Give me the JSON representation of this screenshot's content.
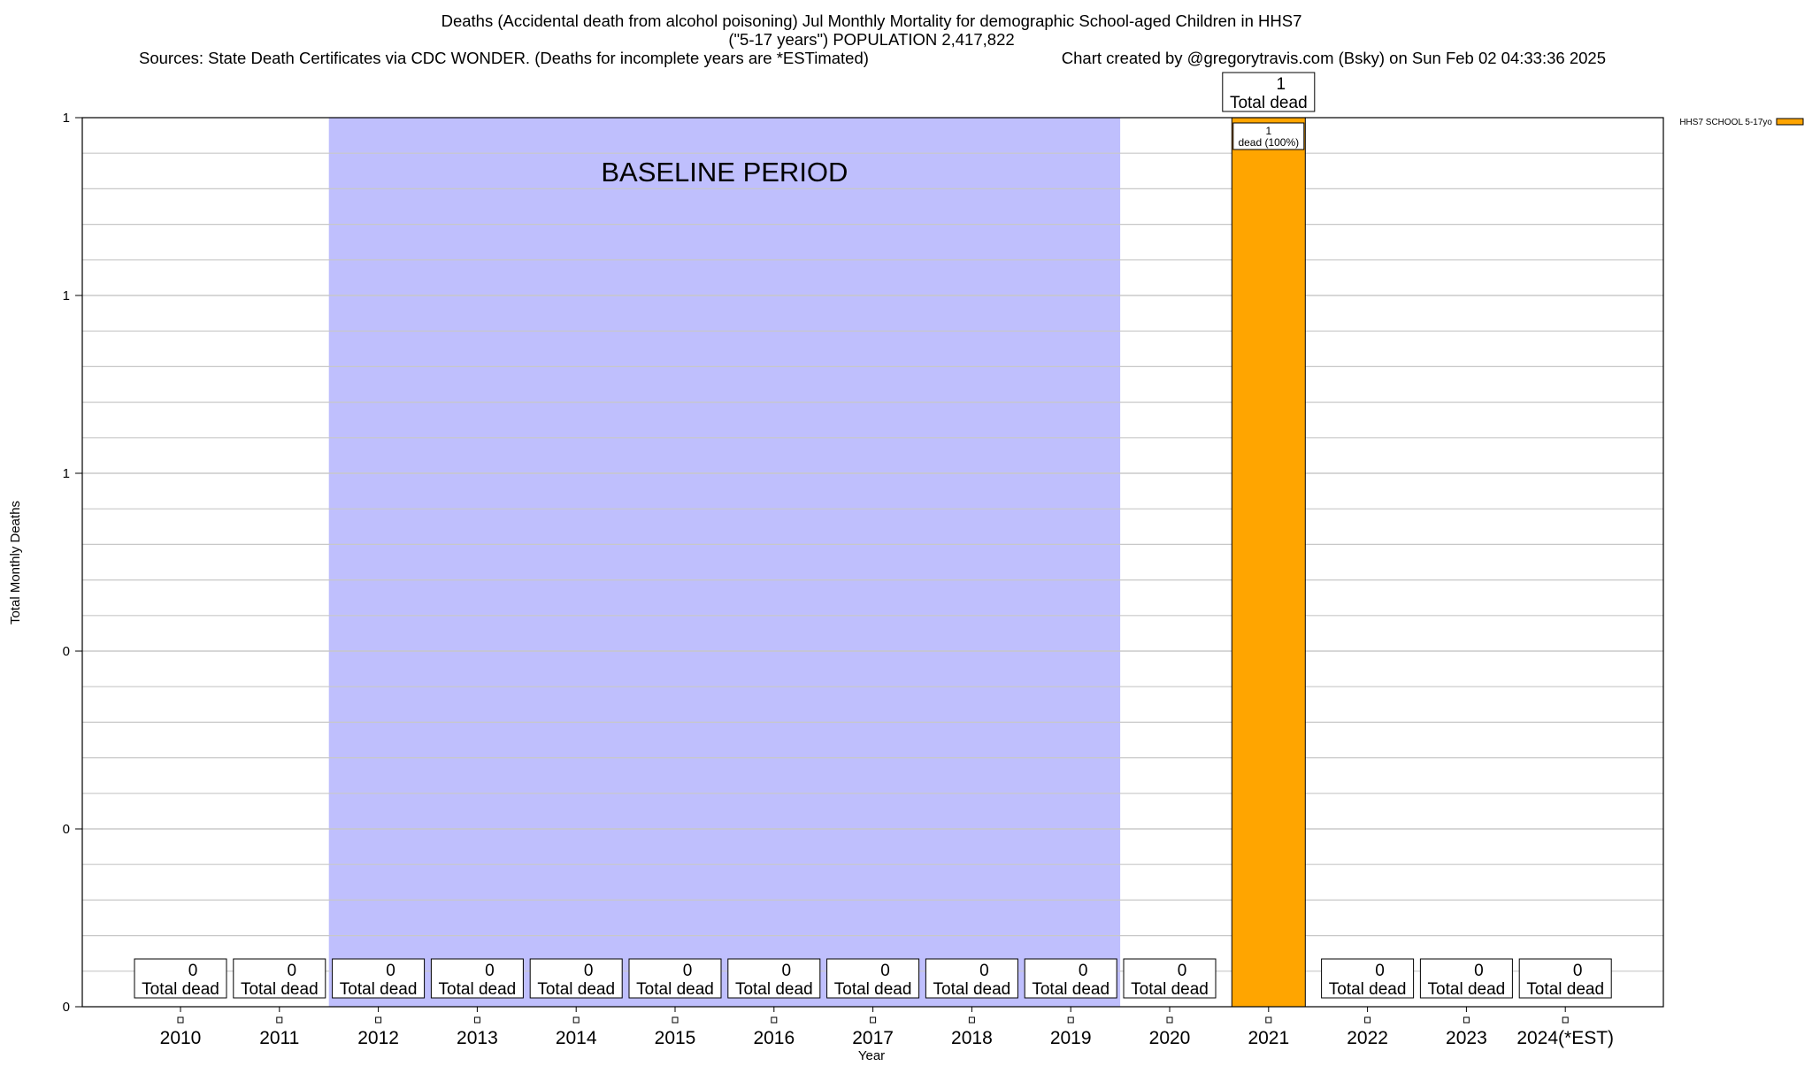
{
  "chart_data": {
    "type": "bar",
    "title_lines": [
      "Deaths (Accidental death from alcohol poisoning) Jul Monthly Mortality for demographic School-aged Children in HHS7",
      "(\"5-17 years\") POPULATION 2,417,822"
    ],
    "source_text": "Sources: State Death Certificates via CDC WONDER. (Deaths for incomplete years are *ESTimated)",
    "credit_text": "Chart created by @gregorytravis.com (Bsky) on Sun Feb 02 04:33:36 2025",
    "xlabel": "Year",
    "ylabel": "Total Monthly Deaths",
    "categories": [
      "2010",
      "2011",
      "2012",
      "2013",
      "2014",
      "2015",
      "2016",
      "2017",
      "2018",
      "2019",
      "2020",
      "2021",
      "2022",
      "2023",
      "2024(*EST)"
    ],
    "series": [
      {
        "name": "HHS7 SCHOOL 5-17yo",
        "color": "#ffa500",
        "values": [
          0,
          0,
          0,
          0,
          0,
          0,
          0,
          0,
          0,
          0,
          0,
          1,
          0,
          0,
          0
        ]
      }
    ],
    "total_labels": [
      "0",
      "0",
      "0",
      "0",
      "0",
      "0",
      "0",
      "0",
      "0",
      "0",
      "0",
      "1",
      "0",
      "0",
      "0"
    ],
    "total_suffix": "Total dead",
    "inner_label": {
      "category": "2021",
      "line1": "1",
      "line2": "dead (100%)"
    },
    "baseline": {
      "label": "BASELINE PERIOD",
      "start": "2012",
      "end": "2019",
      "color": "#bfbffd"
    },
    "yaxis": {
      "min": 0,
      "max": 1,
      "tick_values": [
        0,
        0.2,
        0.4,
        0.6,
        0.8,
        1
      ],
      "tick_labels": [
        "0",
        "0",
        "0",
        "1",
        "1",
        "1"
      ],
      "minor_per_major": 5
    },
    "legend_position": "top-right",
    "grid": true
  }
}
